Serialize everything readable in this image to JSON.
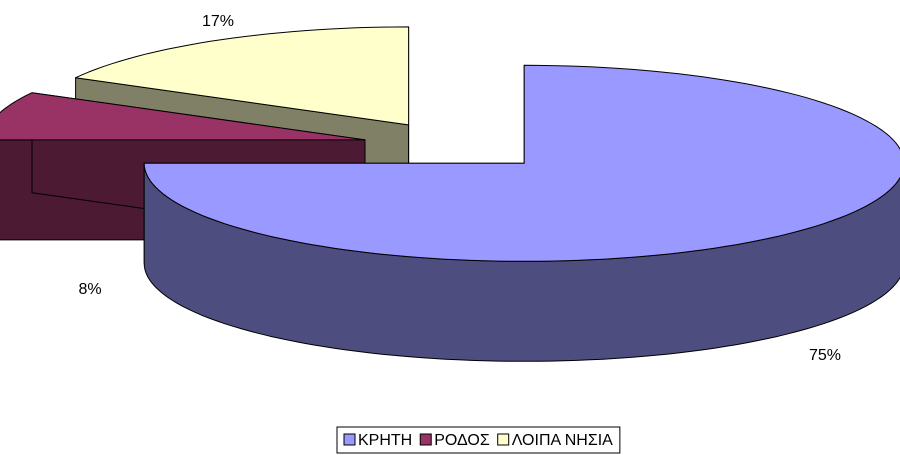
{
  "chart_data": {
    "type": "pie",
    "categories": [
      "ΚΡΗΤΗ",
      "ΡΟΔΟΣ",
      "ΛΟΙΠΑ ΝΗΣΙΑ"
    ],
    "values": [
      75,
      8,
      17
    ],
    "value_labels": [
      "75%",
      "8%",
      "17%"
    ],
    "colors": [
      "#9999FF",
      "#993366",
      "#FFFFCC"
    ],
    "legend": "bottom"
  }
}
